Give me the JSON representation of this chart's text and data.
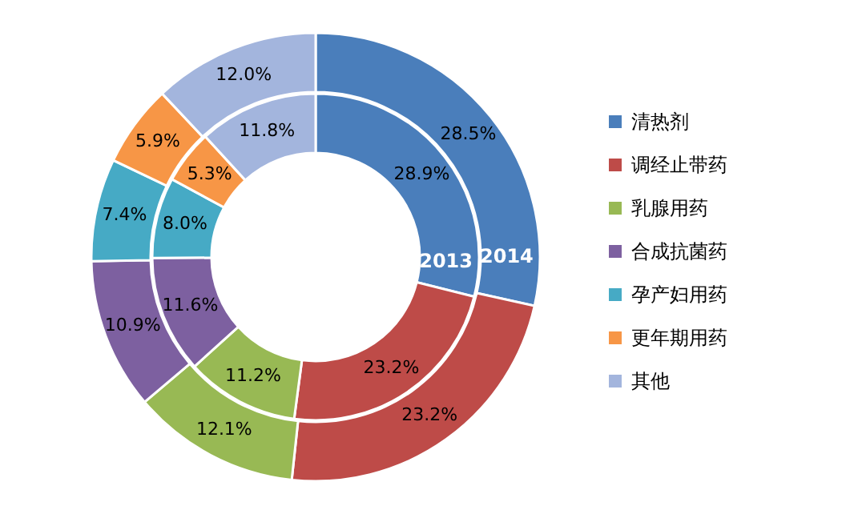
{
  "chart_data": {
    "type": "donut",
    "categories": [
      "清热剂",
      "调经止带药",
      "乳腺用药",
      "合成抗菌药",
      "孕产妇用药",
      "更年期用药",
      "其他"
    ],
    "colors": [
      "#4a7ebb",
      "#be4b48",
      "#98b954",
      "#7d60a0",
      "#46aac5",
      "#f79646",
      "#a3b5dd"
    ],
    "series": [
      {
        "name": "2013",
        "values": [
          28.9,
          23.2,
          11.2,
          11.6,
          8.0,
          5.3,
          11.8
        ],
        "value_labels": [
          "28.9%",
          "23.2%",
          "11.2%",
          "11.6%",
          "8.0%",
          "5.3%",
          "11.8%"
        ]
      },
      {
        "name": "2014",
        "values": [
          28.5,
          23.2,
          12.1,
          10.9,
          7.4,
          5.9,
          12.0
        ],
        "value_labels": [
          "28.5%",
          "23.2%",
          "12.1%",
          "10.9%",
          "7.4%",
          "5.9%",
          "12.0%"
        ]
      }
    ],
    "legend": "right"
  }
}
